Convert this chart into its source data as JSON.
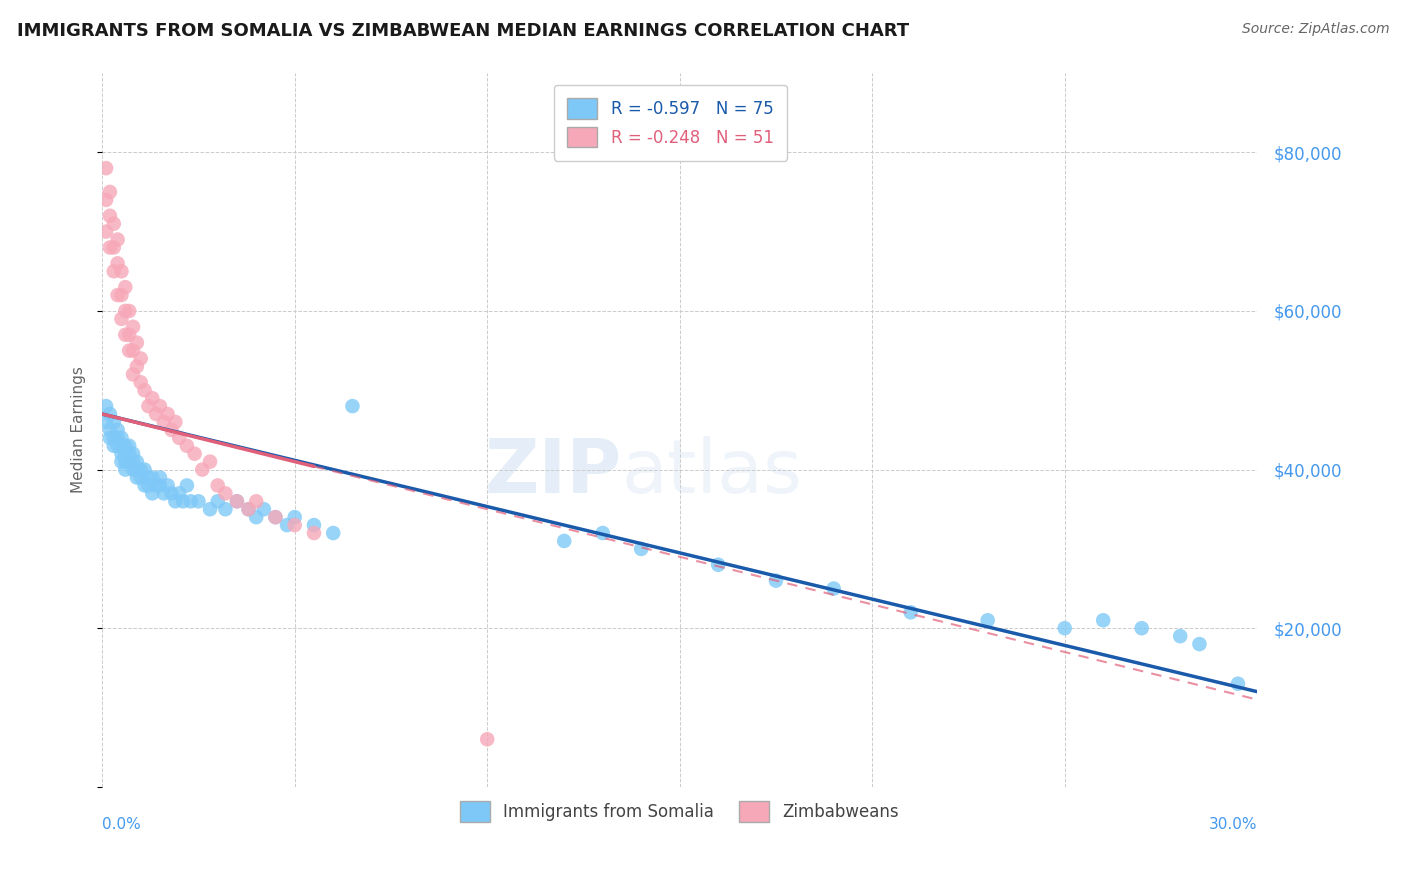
{
  "title": "IMMIGRANTS FROM SOMALIA VS ZIMBABWEAN MEDIAN EARNINGS CORRELATION CHART",
  "source": "Source: ZipAtlas.com",
  "ylabel": "Median Earnings",
  "ytick_values": [
    20000,
    40000,
    60000,
    80000
  ],
  "legend_somalia": "R = -0.597   N = 75",
  "legend_zimbabwe": "R = -0.248   N = 51",
  "legend_label_somalia": "Immigrants from Somalia",
  "legend_label_zimbabwe": "Zimbabweans",
  "watermark_part1": "ZIP",
  "watermark_part2": "atlas",
  "somalia_color": "#7ec8f7",
  "zimbabwe_color": "#f7a8b8",
  "somalia_line_color": "#1a5aaa",
  "zimbabwe_line_color": "#e0607a",
  "background_color": "#ffffff",
  "grid_color": "#cccccc",
  "title_color": "#1a1a1a",
  "axis_label_color": "#4499ee",
  "xlim": [
    0.0,
    0.3
  ],
  "ylim": [
    0,
    90000
  ],
  "somalia_x": [
    0.001,
    0.001,
    0.002,
    0.002,
    0.002,
    0.003,
    0.003,
    0.003,
    0.004,
    0.004,
    0.004,
    0.005,
    0.005,
    0.005,
    0.005,
    0.006,
    0.006,
    0.006,
    0.006,
    0.007,
    0.007,
    0.007,
    0.008,
    0.008,
    0.008,
    0.009,
    0.009,
    0.009,
    0.01,
    0.01,
    0.011,
    0.011,
    0.012,
    0.012,
    0.013,
    0.013,
    0.014,
    0.015,
    0.015,
    0.016,
    0.017,
    0.018,
    0.019,
    0.02,
    0.021,
    0.022,
    0.023,
    0.025,
    0.028,
    0.03,
    0.032,
    0.035,
    0.038,
    0.04,
    0.042,
    0.045,
    0.048,
    0.05,
    0.055,
    0.06,
    0.065,
    0.12,
    0.13,
    0.14,
    0.16,
    0.175,
    0.19,
    0.21,
    0.23,
    0.25,
    0.26,
    0.27,
    0.28,
    0.285,
    0.295
  ],
  "somalia_y": [
    48000,
    46000,
    47000,
    45000,
    44000,
    46000,
    44000,
    43000,
    45000,
    44000,
    43000,
    44000,
    43000,
    42000,
    41000,
    43000,
    42000,
    41000,
    40000,
    43000,
    42000,
    41000,
    42000,
    41000,
    40000,
    41000,
    40000,
    39000,
    40000,
    39000,
    40000,
    38000,
    39000,
    38000,
    39000,
    37000,
    38000,
    39000,
    38000,
    37000,
    38000,
    37000,
    36000,
    37000,
    36000,
    38000,
    36000,
    36000,
    35000,
    36000,
    35000,
    36000,
    35000,
    34000,
    35000,
    34000,
    33000,
    34000,
    33000,
    32000,
    48000,
    31000,
    32000,
    30000,
    28000,
    26000,
    25000,
    22000,
    21000,
    20000,
    21000,
    20000,
    19000,
    18000,
    13000
  ],
  "zimbabwe_x": [
    0.001,
    0.001,
    0.001,
    0.002,
    0.002,
    0.002,
    0.003,
    0.003,
    0.003,
    0.004,
    0.004,
    0.004,
    0.005,
    0.005,
    0.005,
    0.006,
    0.006,
    0.006,
    0.007,
    0.007,
    0.007,
    0.008,
    0.008,
    0.008,
    0.009,
    0.009,
    0.01,
    0.01,
    0.011,
    0.012,
    0.013,
    0.014,
    0.015,
    0.016,
    0.017,
    0.018,
    0.019,
    0.02,
    0.022,
    0.024,
    0.026,
    0.028,
    0.03,
    0.032,
    0.035,
    0.038,
    0.04,
    0.045,
    0.05,
    0.055,
    0.1
  ],
  "zimbabwe_y": [
    78000,
    74000,
    70000,
    75000,
    72000,
    68000,
    71000,
    68000,
    65000,
    69000,
    66000,
    62000,
    65000,
    62000,
    59000,
    63000,
    60000,
    57000,
    60000,
    57000,
    55000,
    58000,
    55000,
    52000,
    56000,
    53000,
    54000,
    51000,
    50000,
    48000,
    49000,
    47000,
    48000,
    46000,
    47000,
    45000,
    46000,
    44000,
    43000,
    42000,
    40000,
    41000,
    38000,
    37000,
    36000,
    35000,
    36000,
    34000,
    33000,
    32000,
    6000
  ]
}
